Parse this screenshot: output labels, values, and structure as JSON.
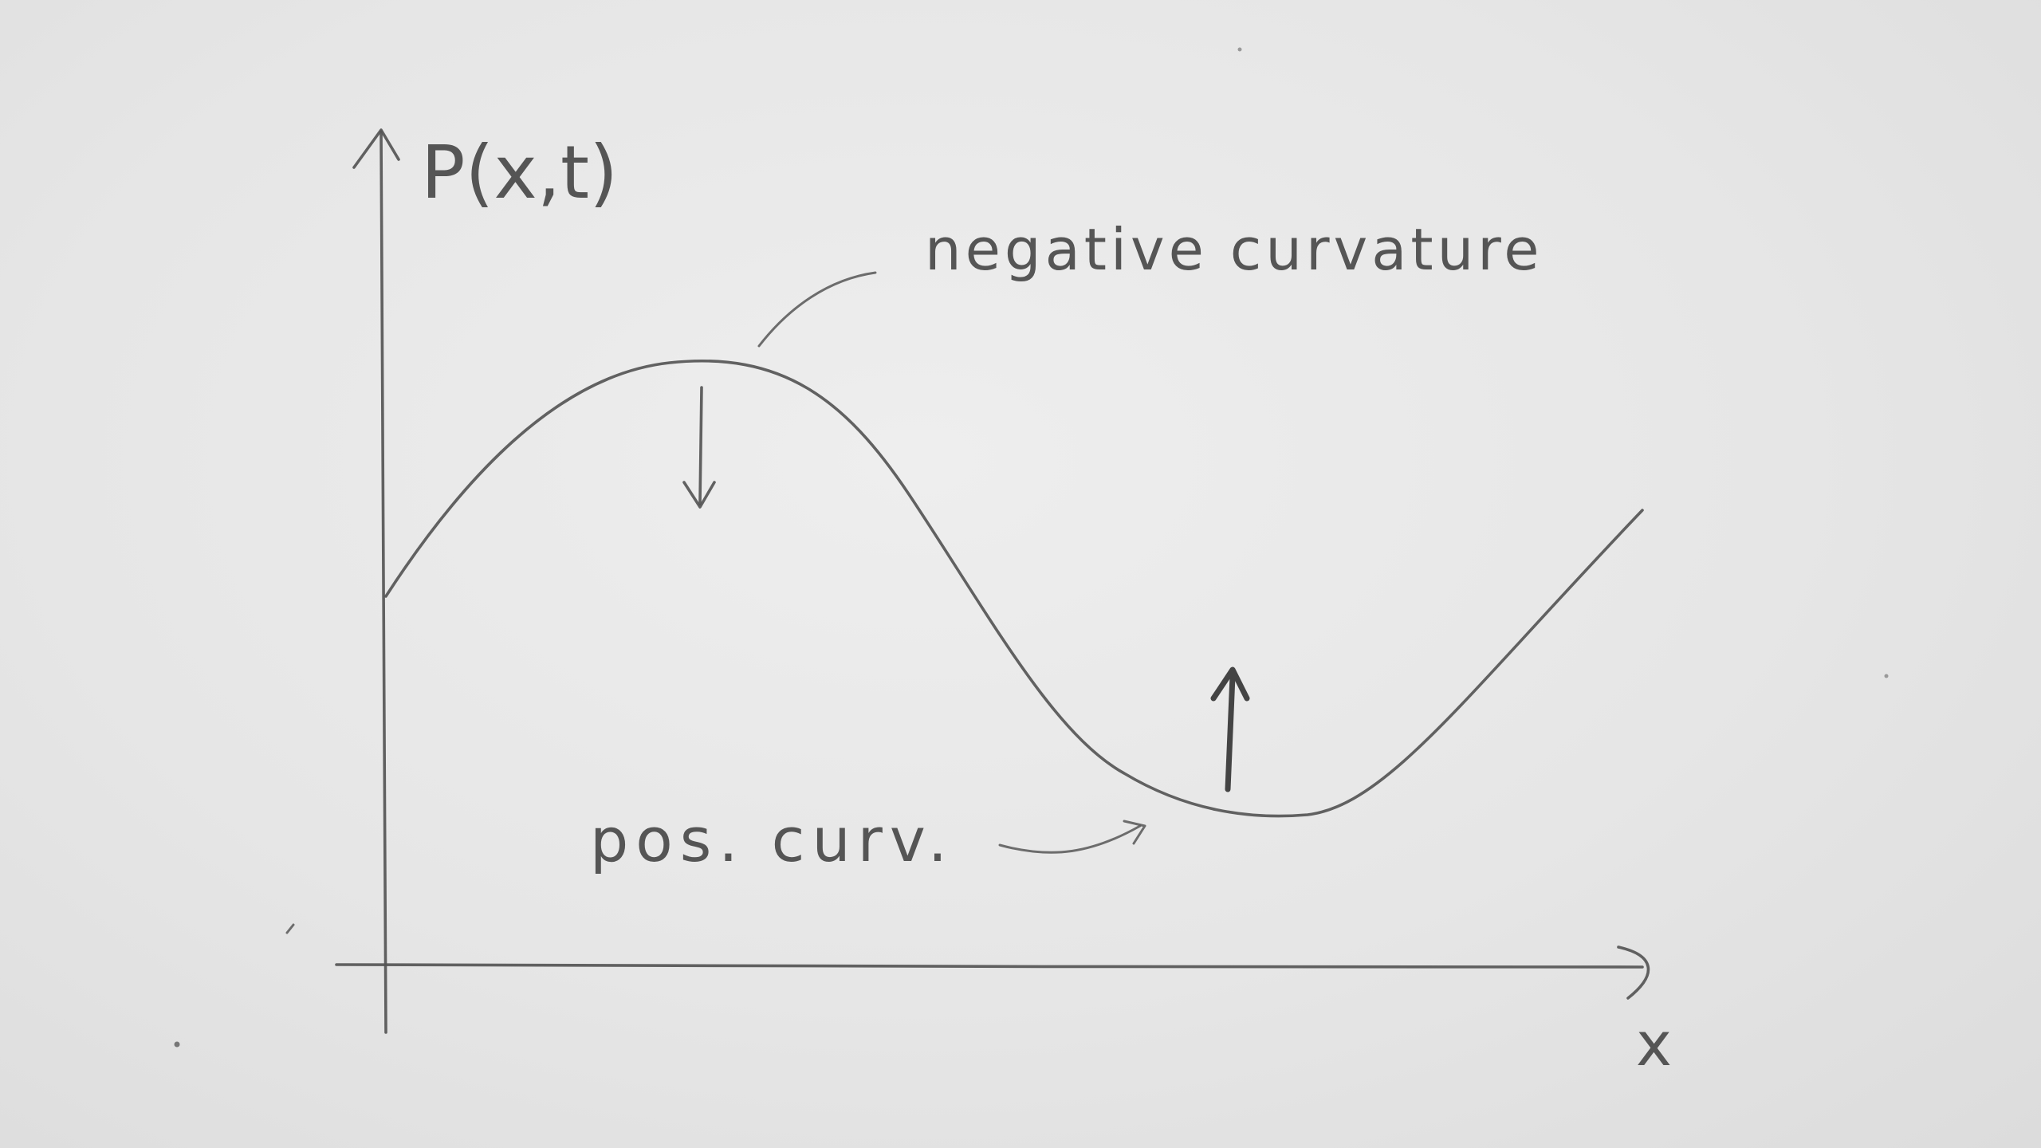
{
  "axes": {
    "y_label": "P(x,t)",
    "x_label": "x"
  },
  "annotations": {
    "negative": "negative curvature",
    "positive": "pos. curv."
  },
  "icons": {
    "down_arrow": "down-arrow-icon",
    "up_arrow": "up-arrow-icon"
  },
  "colors": {
    "paper": "#e7e7e7",
    "pencil": "#555555"
  }
}
